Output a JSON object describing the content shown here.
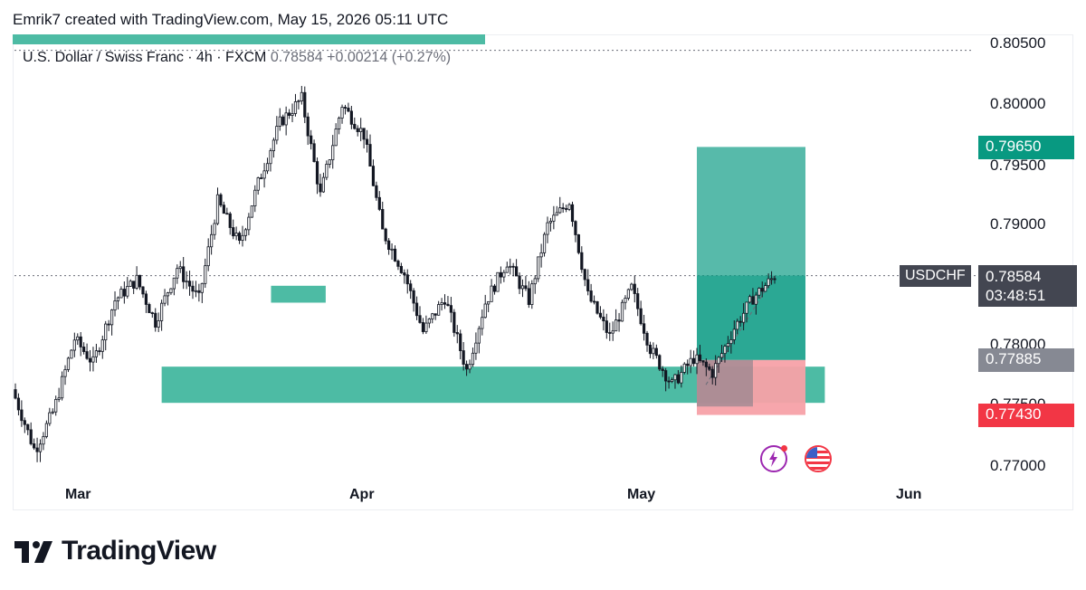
{
  "header": {
    "attribution": "Emrik7 created with TradingView.com, May 15, 2026 05:11 UTC"
  },
  "symbol": {
    "description": "U.S. Dollar / Swiss Franc · 4h · FXCM",
    "last": "0.78584",
    "change": "+0.00214",
    "change_pct": "(+0.27%)"
  },
  "price_tags": {
    "target": "0.79650",
    "symbol": "USDCHF",
    "current": "0.78584",
    "countdown": "03:48:51",
    "entry": "0.77885",
    "stop": "0.77430"
  },
  "icons": {
    "events": "lightning-icon",
    "economic": "us-flag-icon",
    "logo": "tradingview-logo-icon"
  },
  "brand": {
    "name": "TradingView"
  },
  "colors": {
    "up_green": "#089981",
    "zone_teal": "#4dbba4",
    "down_red": "#f23645",
    "stop_pink": "#f7a1a8",
    "gray_tag": "#868993",
    "dark_tag": "#434651"
  },
  "chart_data": {
    "type": "candlestick",
    "interval": "4h",
    "y_ticks": [
      "0.80500",
      "0.80000",
      "0.79500",
      "0.79000",
      "0.78000",
      "0.77500",
      "0.77000"
    ],
    "x_ticks": [
      "Mar",
      "Apr",
      "May",
      "Jun"
    ],
    "ylim": [
      0.7685,
      0.8066
    ],
    "trend_path": [
      [
        0.7764,
        0.7715
      ],
      [
        0.7712,
        0.7745
      ],
      [
        0.7744,
        0.7806
      ],
      [
        0.7806,
        0.7786
      ],
      [
        0.7786,
        0.7838
      ],
      [
        0.7838,
        0.7855
      ],
      [
        0.7855,
        0.782
      ],
      [
        0.782,
        0.7865
      ],
      [
        0.7865,
        0.7839
      ],
      [
        0.7839,
        0.792
      ],
      [
        0.792,
        0.7884
      ],
      [
        0.7884,
        0.7935
      ],
      [
        0.7935,
        0.7985
      ],
      [
        0.7985,
        0.8005
      ],
      [
        0.8005,
        0.7925
      ],
      [
        0.7925,
        0.8
      ],
      [
        0.8,
        0.7975
      ],
      [
        0.7975,
        0.7895
      ],
      [
        0.7895,
        0.786
      ],
      [
        0.786,
        0.7812
      ],
      [
        0.7812,
        0.784
      ],
      [
        0.784,
        0.778
      ],
      [
        0.778,
        0.7836
      ],
      [
        0.7836,
        0.787
      ],
      [
        0.787,
        0.7838
      ],
      [
        0.7838,
        0.79
      ],
      [
        0.79,
        0.792
      ],
      [
        0.792,
        0.7842
      ],
      [
        0.7842,
        0.7808
      ],
      [
        0.7808,
        0.7848
      ],
      [
        0.7848,
        0.7798
      ],
      [
        0.7798,
        0.7768
      ],
      [
        0.7768,
        0.779
      ],
      [
        0.779,
        0.7778
      ],
      [
        0.7778,
        0.7815
      ],
      [
        0.7815,
        0.784
      ],
      [
        0.784,
        0.7858
      ]
    ],
    "zones": [
      {
        "x_start": "Mar 10",
        "x_end": "May 21",
        "y_low": 0.7753,
        "y_high": 0.7783,
        "color": "#4dbba4"
      },
      {
        "x_start": "Mar 22",
        "x_end": "Mar 28",
        "y_low": 0.7836,
        "y_high": 0.785,
        "color": "#4dbba4"
      }
    ],
    "position": {
      "type": "long",
      "entry": 0.77885,
      "target": 0.7965,
      "stop": 0.7743,
      "current": 0.78584
    },
    "price_lines": [
      0.8045,
      0.78584
    ]
  }
}
